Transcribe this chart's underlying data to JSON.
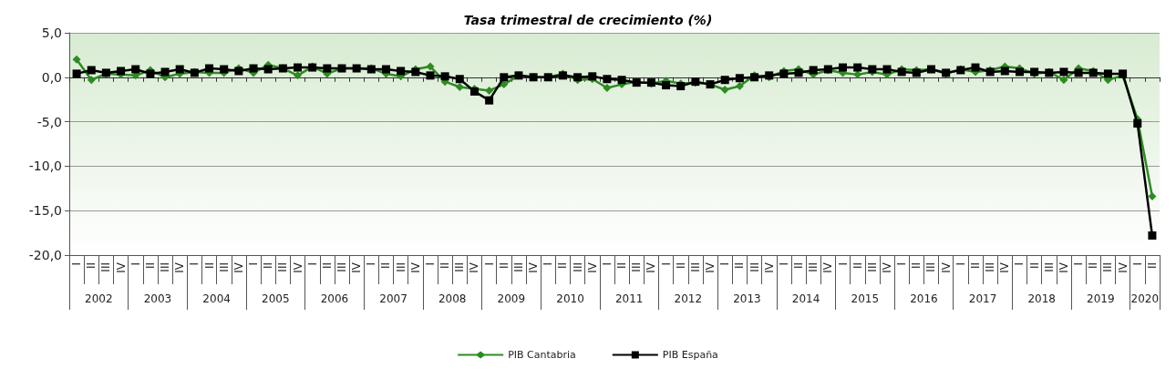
{
  "chart_data": {
    "type": "line",
    "title": "Tasa trimestral de crecimiento (%)",
    "categories": [
      "I",
      "II",
      "III",
      "IV",
      "I",
      "II",
      "III",
      "IV",
      "I",
      "II",
      "III",
      "IV",
      "I",
      "II",
      "III",
      "IV",
      "I",
      "II",
      "III",
      "IV",
      "I",
      "II",
      "III",
      "IV",
      "I",
      "II",
      "III",
      "IV",
      "I",
      "II",
      "III",
      "IV",
      "I",
      "II",
      "III",
      "IV",
      "I",
      "II",
      "III",
      "IV",
      "I",
      "II",
      "III",
      "IV",
      "I",
      "II",
      "III",
      "IV",
      "I",
      "II",
      "III",
      "IV",
      "I",
      "II",
      "III",
      "IV",
      "I",
      "II",
      "III",
      "IV",
      "I",
      "II",
      "III",
      "IV",
      "I",
      "II",
      "III",
      "IV",
      "I",
      "II",
      "III",
      "IV",
      "I",
      "II"
    ],
    "annotations": [
      "2002",
      "2003",
      "2004",
      "2005",
      "2006",
      "2007",
      "2008",
      "2009",
      "2010",
      "2011",
      "2012",
      "2013",
      "2014",
      "2015",
      "2016",
      "2017",
      "2018",
      "2019",
      "2020"
    ],
    "series": [
      {
        "name": "PIB Cantabria",
        "color": "#2e8b22",
        "marker": "diamond",
        "values": [
          2.0,
          -0.3,
          0.4,
          0.3,
          0.2,
          0.8,
          0.0,
          0.4,
          0.6,
          0.5,
          0.5,
          1.0,
          0.5,
          1.4,
          1.0,
          0.2,
          1.2,
          0.4,
          1.0,
          1.0,
          1.0,
          0.4,
          0.1,
          0.9,
          1.2,
          -0.5,
          -1.1,
          -1.3,
          -1.5,
          -0.8,
          0.2,
          0.0,
          0.0,
          0.4,
          -0.3,
          -0.2,
          -1.2,
          -0.8,
          -0.5,
          -0.7,
          -0.4,
          -0.7,
          -0.6,
          -0.8,
          -1.4,
          -1.0,
          0.2,
          0.0,
          0.7,
          0.9,
          0.3,
          0.8,
          0.5,
          0.3,
          0.6,
          0.3,
          0.9,
          0.8,
          0.9,
          0.4,
          0.9,
          0.6,
          0.8,
          1.2,
          1.0,
          0.4,
          0.6,
          -0.3,
          1.0,
          0.7,
          -0.3,
          0.2,
          -4.7,
          -13.4
        ]
      },
      {
        "name": "PIB España",
        "color": "#000000",
        "marker": "square",
        "values": [
          0.4,
          0.8,
          0.5,
          0.7,
          0.9,
          0.4,
          0.6,
          0.9,
          0.5,
          1.0,
          0.9,
          0.7,
          1.0,
          0.9,
          1.0,
          1.1,
          1.1,
          1.0,
          1.0,
          1.0,
          0.9,
          0.9,
          0.7,
          0.6,
          0.2,
          0.1,
          -0.2,
          -1.6,
          -2.6,
          0.0,
          0.2,
          0.0,
          0.0,
          0.2,
          0.0,
          0.1,
          -0.2,
          -0.3,
          -0.6,
          -0.6,
          -0.9,
          -1.0,
          -0.5,
          -0.8,
          -0.3,
          -0.1,
          0.0,
          0.2,
          0.4,
          0.5,
          0.8,
          0.9,
          1.1,
          1.1,
          0.9,
          0.9,
          0.6,
          0.5,
          0.9,
          0.5,
          0.8,
          1.1,
          0.6,
          0.7,
          0.6,
          0.6,
          0.5,
          0.6,
          0.5,
          0.5,
          0.4,
          0.4,
          -5.2,
          -17.8
        ]
      }
    ],
    "ylim": [
      -20,
      5
    ],
    "yticks": [
      {
        "value": -20,
        "label": "-20,0"
      },
      {
        "value": -15,
        "label": "-15,0"
      },
      {
        "value": -10,
        "label": "-10,0"
      },
      {
        "value": -5,
        "label": "-5,0"
      },
      {
        "value": 0,
        "label": "0,0"
      },
      {
        "value": 5,
        "label": "5,0"
      }
    ],
    "grid": "y",
    "legend": "bottom",
    "line_style": "solid"
  }
}
